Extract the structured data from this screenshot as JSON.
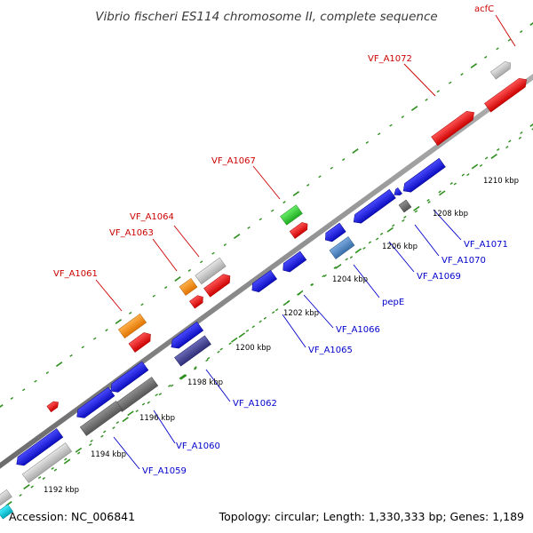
{
  "title": "Vibrio fischeri ES114 chromosome II, complete sequence",
  "footer": {
    "accession": "Accession: NC_006841",
    "info": "Topology: circular; Length: 1,330,333 bp; Genes: 1,189"
  },
  "colors": {
    "backbone": "#8a8a8a",
    "tick": "#2f8f1f",
    "forward_label": "#cc0000",
    "reverse_label": "#0000cc",
    "red": "#ee0000",
    "blue": "#1a1ae0",
    "gray": "#bdbdbd",
    "darkgray": "#6f6f6f",
    "orange": "#f58a00",
    "green": "#33cc33",
    "navy": "#404090",
    "steel": "#4f86c2",
    "cyan": "#00c8d8"
  },
  "ticks": [
    "1192 kbp",
    "1194 kbp",
    "1196 kbp",
    "1198 kbp",
    "1200 kbp",
    "1202 kbp",
    "1204 kbp",
    "1206 kbp",
    "1208 kbp",
    "1210 kbp"
  ],
  "labels": {
    "acfC": "acfC",
    "VF_A1072": "VF_A1072",
    "VF_A1067": "VF_A1067",
    "VF_A1064": "VF_A1064",
    "VF_A1063": "VF_A1063",
    "VF_A1061": "VF_A1061",
    "VF_A1071": "VF_A1071",
    "VF_A1070": "VF_A1070",
    "VF_A1069": "VF_A1069",
    "pepE": "pepE",
    "VF_A1066": "VF_A1066",
    "VF_A1065": "VF_A1065",
    "VF_A1062": "VF_A1062",
    "VF_A1060": "VF_A1060",
    "VF_A1059": "VF_A1059"
  }
}
